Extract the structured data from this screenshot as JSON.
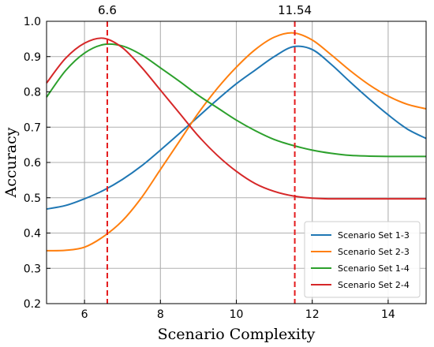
{
  "chart_data": {
    "type": "line",
    "xlabel": "Scenario Complexity",
    "ylabel": "Accuracy",
    "xlim": [
      5,
      15
    ],
    "ylim": [
      0.2,
      1.0
    ],
    "xticks": [
      6,
      8,
      10,
      12,
      14
    ],
    "yticks": [
      0.2,
      0.3,
      0.4,
      0.5,
      0.6,
      0.7,
      0.8,
      0.9,
      1.0
    ],
    "ytick_labels": [
      "0.2",
      "0.3",
      "0.4",
      "0.5",
      "0.6",
      "0.7",
      "0.8",
      "0.9",
      "1.0"
    ],
    "grid": true,
    "legend_position": "bottom-right",
    "vertical_lines": [
      {
        "x": 6.6,
        "label": "6.6",
        "color": "#e41a1c"
      },
      {
        "x": 11.54,
        "label": "11.54",
        "color": "#e41a1c"
      }
    ],
    "series": [
      {
        "name": "Scenario Set 1-3",
        "color": "#1f77b4",
        "x": [
          5,
          5.5,
          6,
          6.5,
          7,
          7.5,
          8,
          8.5,
          9,
          9.5,
          10,
          10.5,
          11,
          11.5,
          12,
          12.5,
          13,
          13.5,
          14,
          14.5,
          15
        ],
        "y": [
          0.468,
          0.478,
          0.497,
          0.521,
          0.552,
          0.59,
          0.635,
          0.682,
          0.73,
          0.778,
          0.823,
          0.862,
          0.9,
          0.928,
          0.92,
          0.878,
          0.828,
          0.78,
          0.735,
          0.695,
          0.668
        ]
      },
      {
        "name": "Scenario Set 2-3",
        "color": "#ff7f0e",
        "x": [
          5,
          5.5,
          6,
          6.5,
          7,
          7.5,
          8,
          8.5,
          9,
          9.5,
          10,
          10.5,
          11,
          11.5,
          12,
          12.5,
          13,
          13.5,
          14,
          14.5,
          15
        ],
        "y": [
          0.35,
          0.351,
          0.36,
          0.39,
          0.435,
          0.5,
          0.58,
          0.66,
          0.74,
          0.81,
          0.87,
          0.92,
          0.955,
          0.967,
          0.947,
          0.905,
          0.86,
          0.82,
          0.788,
          0.765,
          0.752
        ]
      },
      {
        "name": "Scenario Set 1-4",
        "color": "#2ca02c",
        "x": [
          5,
          5.5,
          6,
          6.5,
          7,
          7.5,
          8,
          8.5,
          9,
          9.5,
          10,
          10.5,
          11,
          11.5,
          12,
          12.5,
          13,
          13.5,
          14,
          14.5,
          15
        ],
        "y": [
          0.785,
          0.86,
          0.91,
          0.934,
          0.93,
          0.905,
          0.868,
          0.83,
          0.79,
          0.755,
          0.72,
          0.69,
          0.665,
          0.648,
          0.635,
          0.626,
          0.62,
          0.618,
          0.617,
          0.617,
          0.617
        ]
      },
      {
        "name": "Scenario Set 2-4",
        "color": "#d62728",
        "x": [
          5,
          5.5,
          6,
          6.5,
          7,
          7.5,
          8,
          8.5,
          9,
          9.5,
          10,
          10.5,
          11,
          11.5,
          12,
          12.5,
          13,
          13.5,
          14,
          14.5,
          15
        ],
        "y": [
          0.825,
          0.895,
          0.938,
          0.952,
          0.925,
          0.87,
          0.805,
          0.74,
          0.675,
          0.62,
          0.575,
          0.54,
          0.518,
          0.505,
          0.499,
          0.497,
          0.497,
          0.497,
          0.497,
          0.497,
          0.497
        ]
      }
    ]
  }
}
